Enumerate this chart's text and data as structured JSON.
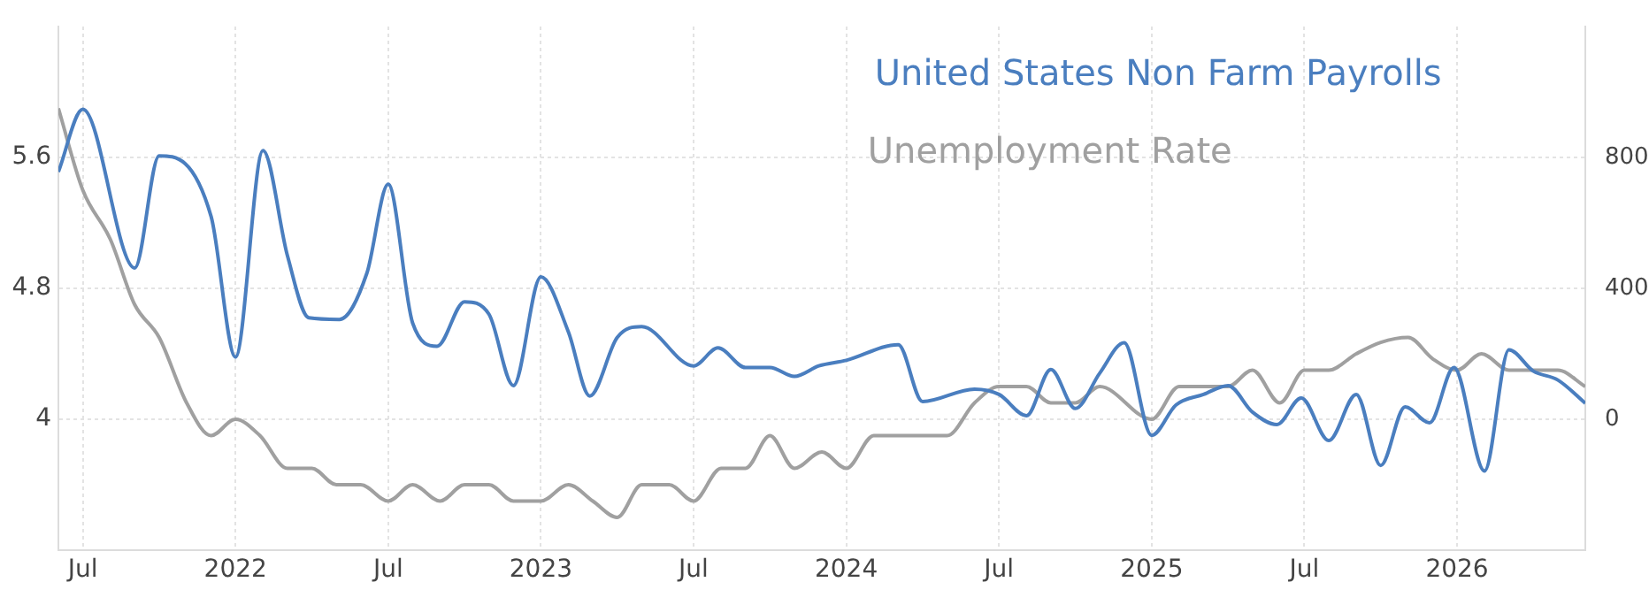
{
  "chart_data": {
    "type": "line",
    "legend": "top right",
    "grid": true,
    "marker": "none",
    "line_style": "solid",
    "xlim": [
      2021.42,
      2026.42
    ],
    "xticks": [
      {
        "value": 2021.5,
        "label": "Jul"
      },
      2022,
      {
        "value": 2022.5,
        "label": "Jul"
      },
      2023,
      {
        "value": 2023.5,
        "label": "Jul"
      },
      2024,
      {
        "value": 2024.5,
        "label": "Jul"
      },
      2025,
      {
        "value": 2025.5,
        "label": "Jul"
      },
      2026
    ],
    "ylim": [
      3.2,
      6.4
    ],
    "yticks": [
      4,
      4.8,
      5.6
    ],
    "y2lim": [
      -400,
      1200
    ],
    "y2ticks": [
      0,
      400,
      800
    ],
    "series": [
      {
        "name": "United States Non Farm Payrolls",
        "color": "#4a7ebf",
        "axis": "y2",
        "x": [
          2021.42,
          2021.5,
          2021.67,
          2021.75,
          2021.92,
          2022.0,
          2022.09,
          2022.17,
          2022.24,
          2022.34,
          2022.43,
          2022.5,
          2022.58,
          2022.66,
          2022.75,
          2022.83,
          2022.91,
          2023.0,
          2023.09,
          2023.16,
          2023.25,
          2023.33,
          2023.5,
          2023.58,
          2023.67,
          2023.75,
          2023.83,
          2023.91,
          2024.0,
          2024.17,
          2024.25,
          2024.42,
          2024.5,
          2024.59,
          2024.67,
          2024.75,
          2024.83,
          2024.91,
          2025.0,
          2025.08,
          2025.17,
          2025.25,
          2025.33,
          2025.41,
          2025.49,
          2025.58,
          2025.67,
          2025.75,
          2025.83,
          2025.91,
          2025.99,
          2026.09,
          2026.17,
          2026.25,
          2026.33,
          2026.42
        ],
        "values": [
          756,
          947,
          462,
          805,
          620,
          190,
          821,
          500,
          310,
          305,
          446,
          718,
          294,
          223,
          359,
          321,
          103,
          435,
          267,
          71,
          250,
          283,
          163,
          218,
          158,
          158,
          131,
          163,
          180,
          228,
          54,
          92,
          76,
          11,
          152,
          33,
          141,
          234,
          -49,
          44,
          76,
          103,
          22,
          -16,
          65,
          -65,
          76,
          -141,
          38,
          -11,
          158,
          -158,
          212,
          147,
          120,
          49
        ]
      },
      {
        "name": "Unemployment Rate",
        "color": "#a0a0a0",
        "axis": "y",
        "x": [
          2021.42,
          2021.5,
          2021.59,
          2021.67,
          2021.75,
          2021.84,
          2021.92,
          2022.0,
          2022.08,
          2022.17,
          2022.25,
          2022.33,
          2022.41,
          2022.5,
          2022.58,
          2022.67,
          2022.75,
          2022.83,
          2022.91,
          2023.0,
          2023.09,
          2023.17,
          2023.25,
          2023.33,
          2023.42,
          2023.5,
          2023.59,
          2023.67,
          2023.75,
          2023.83,
          2023.92,
          2024.0,
          2024.09,
          2024.33,
          2024.42,
          2024.5,
          2024.59,
          2024.67,
          2024.75,
          2024.83,
          2025.0,
          2025.09,
          2025.25,
          2025.33,
          2025.42,
          2025.5,
          2025.58,
          2025.67,
          2025.75,
          2025.84,
          2025.92,
          2026.0,
          2026.08,
          2026.17,
          2026.33,
          2026.42
        ],
        "values": [
          5.9,
          5.4,
          5.1,
          4.7,
          4.5,
          4.1,
          3.9,
          4.0,
          3.9,
          3.7,
          3.7,
          3.6,
          3.6,
          3.5,
          3.6,
          3.5,
          3.6,
          3.6,
          3.5,
          3.5,
          3.6,
          3.5,
          3.4,
          3.6,
          3.6,
          3.5,
          3.7,
          3.7,
          3.9,
          3.7,
          3.8,
          3.7,
          3.9,
          3.9,
          4.1,
          4.2,
          4.2,
          4.1,
          4.1,
          4.2,
          4.0,
          4.2,
          4.2,
          4.3,
          4.1,
          4.3,
          4.3,
          4.4,
          4.47,
          4.5,
          4.37,
          4.3,
          4.4,
          4.3,
          4.3,
          4.2
        ]
      }
    ]
  }
}
